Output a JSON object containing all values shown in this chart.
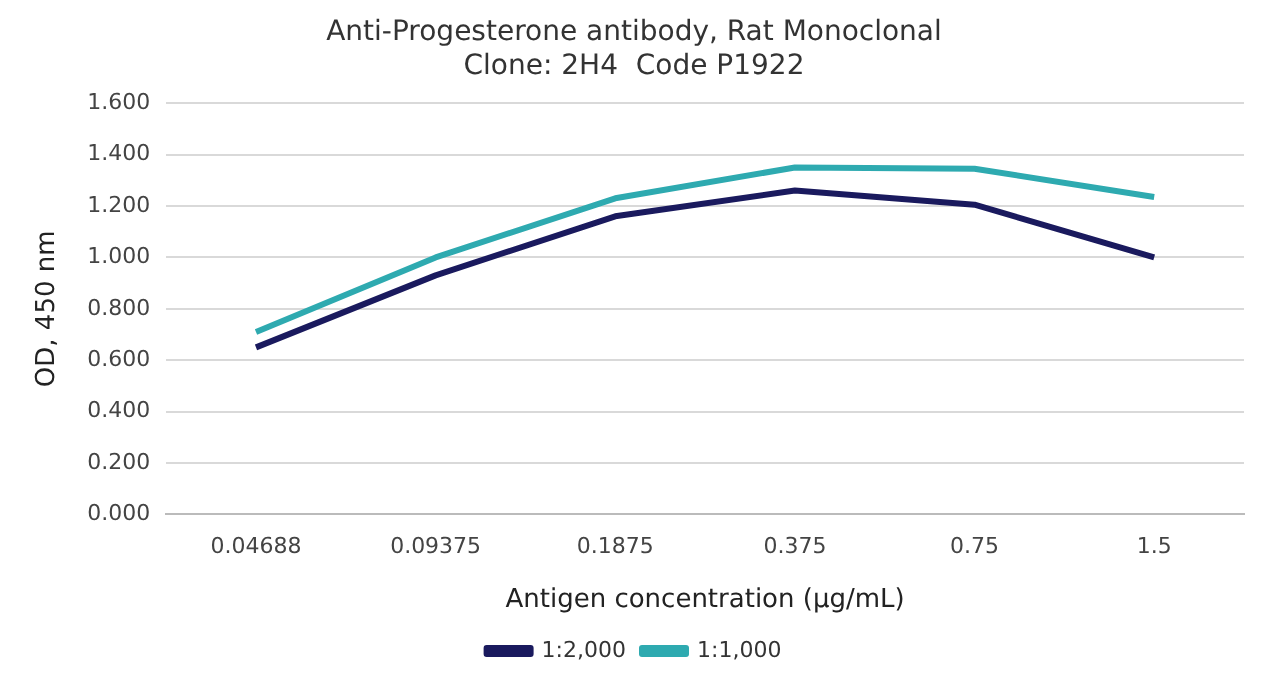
{
  "chart_data": {
    "type": "line",
    "title": "Anti-Progesterone antibody, Rat Monoclonal\nClone: 2H4  Code P1922",
    "xlabel": "Antigen concentration (µg/mL)",
    "ylabel": "OD, 450 nm",
    "categories": [
      "0.04688",
      "0.09375",
      "0.1875",
      "0.375",
      "0.75",
      "1.5"
    ],
    "series": [
      {
        "name": "1:2,000",
        "color": "#1a1a5e",
        "values": [
          0.65,
          0.93,
          1.16,
          1.26,
          1.205,
          1.0
        ]
      },
      {
        "name": "1:1,000",
        "color": "#2eaab0",
        "values": [
          0.71,
          1.0,
          1.23,
          1.35,
          1.345,
          1.235
        ]
      }
    ],
    "ylim": [
      0,
      1.6
    ],
    "yticks": [
      {
        "value": 0,
        "label": "0.000"
      },
      {
        "value": 0.2,
        "label": "0.200"
      },
      {
        "value": 0.4,
        "label": "0.400"
      },
      {
        "value": 0.6,
        "label": "0.600"
      },
      {
        "value": 0.8,
        "label": "0.800"
      },
      {
        "value": 1.0,
        "label": "1.000"
      },
      {
        "value": 1.2,
        "label": "1.200"
      },
      {
        "value": 1.4,
        "label": "1.400"
      },
      {
        "value": 1.6,
        "label": "1.600"
      }
    ],
    "grid": "y",
    "legend": "bottom",
    "marker": "none",
    "line_style": "solid"
  }
}
